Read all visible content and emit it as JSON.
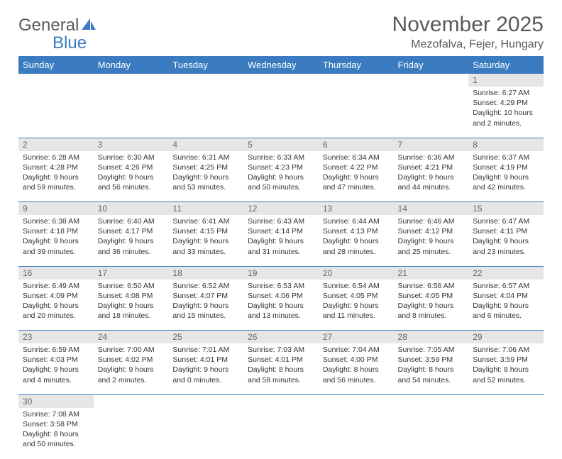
{
  "logo": {
    "word1": "General",
    "word2": "Blue"
  },
  "title": "November 2025",
  "location": "Mezofalva, Fejer, Hungary",
  "colors": {
    "headerBar": "#3b7bbf",
    "dayStrip": "#e6e6e6",
    "text": "#595959",
    "rowBorder": "#3b7bbf"
  },
  "dayHeaders": [
    "Sunday",
    "Monday",
    "Tuesday",
    "Wednesday",
    "Thursday",
    "Friday",
    "Saturday"
  ],
  "weeks": [
    {
      "nums": [
        "",
        "",
        "",
        "",
        "",
        "",
        "1"
      ],
      "cells": [
        null,
        null,
        null,
        null,
        null,
        null,
        {
          "sr": "Sunrise: 6:27 AM",
          "ss": "Sunset: 4:29 PM",
          "dl": "Daylight: 10 hours and 2 minutes."
        }
      ]
    },
    {
      "nums": [
        "2",
        "3",
        "4",
        "5",
        "6",
        "7",
        "8"
      ],
      "cells": [
        {
          "sr": "Sunrise: 6:28 AM",
          "ss": "Sunset: 4:28 PM",
          "dl": "Daylight: 9 hours and 59 minutes."
        },
        {
          "sr": "Sunrise: 6:30 AM",
          "ss": "Sunset: 4:26 PM",
          "dl": "Daylight: 9 hours and 56 minutes."
        },
        {
          "sr": "Sunrise: 6:31 AM",
          "ss": "Sunset: 4:25 PM",
          "dl": "Daylight: 9 hours and 53 minutes."
        },
        {
          "sr": "Sunrise: 6:33 AM",
          "ss": "Sunset: 4:23 PM",
          "dl": "Daylight: 9 hours and 50 minutes."
        },
        {
          "sr": "Sunrise: 6:34 AM",
          "ss": "Sunset: 4:22 PM",
          "dl": "Daylight: 9 hours and 47 minutes."
        },
        {
          "sr": "Sunrise: 6:36 AM",
          "ss": "Sunset: 4:21 PM",
          "dl": "Daylight: 9 hours and 44 minutes."
        },
        {
          "sr": "Sunrise: 6:37 AM",
          "ss": "Sunset: 4:19 PM",
          "dl": "Daylight: 9 hours and 42 minutes."
        }
      ]
    },
    {
      "nums": [
        "9",
        "10",
        "11",
        "12",
        "13",
        "14",
        "15"
      ],
      "cells": [
        {
          "sr": "Sunrise: 6:38 AM",
          "ss": "Sunset: 4:18 PM",
          "dl": "Daylight: 9 hours and 39 minutes."
        },
        {
          "sr": "Sunrise: 6:40 AM",
          "ss": "Sunset: 4:17 PM",
          "dl": "Daylight: 9 hours and 36 minutes."
        },
        {
          "sr": "Sunrise: 6:41 AM",
          "ss": "Sunset: 4:15 PM",
          "dl": "Daylight: 9 hours and 33 minutes."
        },
        {
          "sr": "Sunrise: 6:43 AM",
          "ss": "Sunset: 4:14 PM",
          "dl": "Daylight: 9 hours and 31 minutes."
        },
        {
          "sr": "Sunrise: 6:44 AM",
          "ss": "Sunset: 4:13 PM",
          "dl": "Daylight: 9 hours and 28 minutes."
        },
        {
          "sr": "Sunrise: 6:46 AM",
          "ss": "Sunset: 4:12 PM",
          "dl": "Daylight: 9 hours and 25 minutes."
        },
        {
          "sr": "Sunrise: 6:47 AM",
          "ss": "Sunset: 4:11 PM",
          "dl": "Daylight: 9 hours and 23 minutes."
        }
      ]
    },
    {
      "nums": [
        "16",
        "17",
        "18",
        "19",
        "20",
        "21",
        "22"
      ],
      "cells": [
        {
          "sr": "Sunrise: 6:49 AM",
          "ss": "Sunset: 4:09 PM",
          "dl": "Daylight: 9 hours and 20 minutes."
        },
        {
          "sr": "Sunrise: 6:50 AM",
          "ss": "Sunset: 4:08 PM",
          "dl": "Daylight: 9 hours and 18 minutes."
        },
        {
          "sr": "Sunrise: 6:52 AM",
          "ss": "Sunset: 4:07 PM",
          "dl": "Daylight: 9 hours and 15 minutes."
        },
        {
          "sr": "Sunrise: 6:53 AM",
          "ss": "Sunset: 4:06 PM",
          "dl": "Daylight: 9 hours and 13 minutes."
        },
        {
          "sr": "Sunrise: 6:54 AM",
          "ss": "Sunset: 4:05 PM",
          "dl": "Daylight: 9 hours and 11 minutes."
        },
        {
          "sr": "Sunrise: 6:56 AM",
          "ss": "Sunset: 4:05 PM",
          "dl": "Daylight: 9 hours and 8 minutes."
        },
        {
          "sr": "Sunrise: 6:57 AM",
          "ss": "Sunset: 4:04 PM",
          "dl": "Daylight: 9 hours and 6 minutes."
        }
      ]
    },
    {
      "nums": [
        "23",
        "24",
        "25",
        "26",
        "27",
        "28",
        "29"
      ],
      "cells": [
        {
          "sr": "Sunrise: 6:59 AM",
          "ss": "Sunset: 4:03 PM",
          "dl": "Daylight: 9 hours and 4 minutes."
        },
        {
          "sr": "Sunrise: 7:00 AM",
          "ss": "Sunset: 4:02 PM",
          "dl": "Daylight: 9 hours and 2 minutes."
        },
        {
          "sr": "Sunrise: 7:01 AM",
          "ss": "Sunset: 4:01 PM",
          "dl": "Daylight: 9 hours and 0 minutes."
        },
        {
          "sr": "Sunrise: 7:03 AM",
          "ss": "Sunset: 4:01 PM",
          "dl": "Daylight: 8 hours and 58 minutes."
        },
        {
          "sr": "Sunrise: 7:04 AM",
          "ss": "Sunset: 4:00 PM",
          "dl": "Daylight: 8 hours and 56 minutes."
        },
        {
          "sr": "Sunrise: 7:05 AM",
          "ss": "Sunset: 3:59 PM",
          "dl": "Daylight: 8 hours and 54 minutes."
        },
        {
          "sr": "Sunrise: 7:06 AM",
          "ss": "Sunset: 3:59 PM",
          "dl": "Daylight: 8 hours and 52 minutes."
        }
      ]
    },
    {
      "nums": [
        "30",
        "",
        "",
        "",
        "",
        "",
        ""
      ],
      "cells": [
        {
          "sr": "Sunrise: 7:08 AM",
          "ss": "Sunset: 3:58 PM",
          "dl": "Daylight: 8 hours and 50 minutes."
        },
        null,
        null,
        null,
        null,
        null,
        null
      ]
    }
  ]
}
